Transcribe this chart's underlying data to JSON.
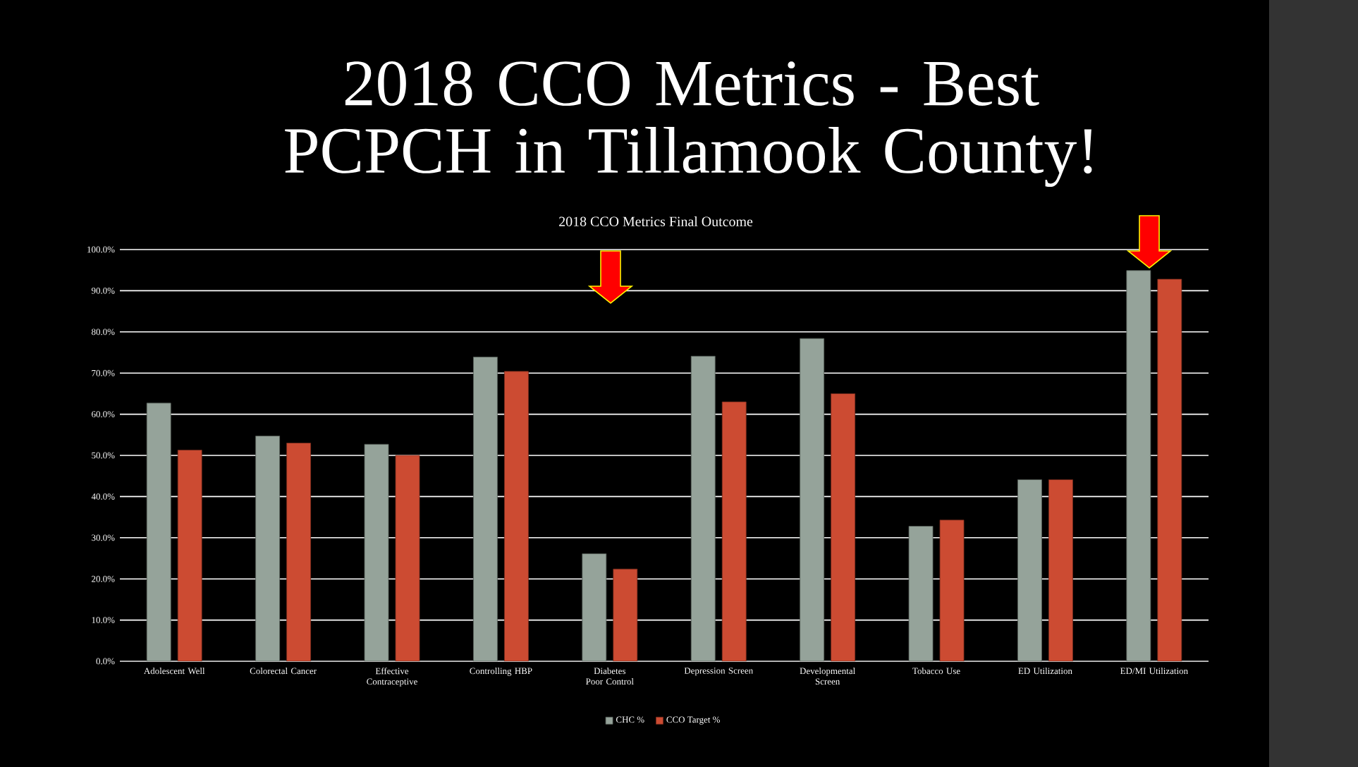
{
  "chart_data": {
    "type": "bar",
    "title": "2018 CCO Metrics - Best PCPCH in Tillamook County!",
    "subtitle": "2018 CCO Metrics Final Outcome",
    "categories": [
      "Adolescent Well",
      "Colorectal Cancer",
      "Effective Contraceptive",
      "Controlling HBP",
      "Diabetes Poor Control",
      "Depression Screen",
      "Developmental Screen",
      "Tobacco Use",
      "ED Utilization",
      "ED/MI Utilization"
    ],
    "series": [
      {
        "name": "CHC %",
        "color": "#95a39a",
        "values": [
          62.7,
          54.7,
          52.7,
          73.9,
          26.1,
          74.1,
          78.4,
          32.8,
          44.1,
          94.9
        ]
      },
      {
        "name": "CCO Target %",
        "color": "#cc4b32",
        "values": [
          51.3,
          53.0,
          50.0,
          70.4,
          22.4,
          63.0,
          65.0,
          34.3,
          44.1,
          92.8
        ]
      }
    ],
    "ylim": [
      0,
      100
    ],
    "yticks": [
      {
        "value": 0,
        "label": "0.0%"
      },
      {
        "value": 10,
        "label": "10.0%"
      },
      {
        "value": 20,
        "label": "20.0%"
      },
      {
        "value": 30,
        "label": "30.0%"
      },
      {
        "value": 40,
        "label": "40.0%"
      },
      {
        "value": 50,
        "label": "50.0%"
      },
      {
        "value": 60,
        "label": "60.0%"
      },
      {
        "value": 70,
        "label": "70.0%"
      },
      {
        "value": 80,
        "label": "80.0%"
      },
      {
        "value": 90,
        "label": "90.0%"
      },
      {
        "value": 100,
        "label": "100.0%"
      }
    ],
    "grid": "y",
    "legend": "bottom"
  }
}
